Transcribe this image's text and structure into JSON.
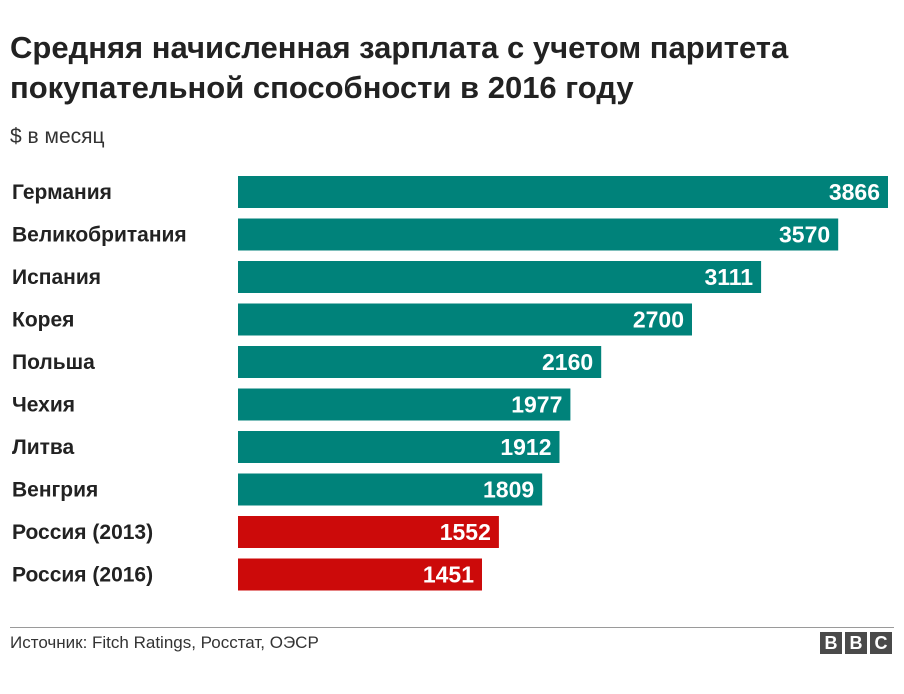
{
  "chart_data": {
    "type": "bar",
    "orientation": "horizontal",
    "title": "Средняя начисленная зарплата с учетом паритета покупательной способности в 2016 году",
    "subtitle": "$ в месяц",
    "categories": [
      "Германия",
      "Великобритания",
      "Испания",
      "Корея",
      "Польша",
      "Чехия",
      "Литва",
      "Венгрия",
      "Россия (2013)",
      "Россия (2016)"
    ],
    "values": [
      3866,
      3570,
      3111,
      2700,
      2160,
      1977,
      1912,
      1809,
      1552,
      1451
    ],
    "highlight_categories": [
      "Россия (2013)",
      "Россия (2016)"
    ],
    "xlim": [
      0,
      3866
    ],
    "grid": false,
    "legend": "none",
    "data_labels": "inside-end"
  },
  "colors": {
    "bar_default": "#00827a",
    "bar_highlight": "#cc0a0a",
    "value_text": "#ffffff",
    "title_text": "#222222"
  },
  "footer": {
    "source": "Источник: Fitch Ratings, Росстат, ОЭСР",
    "logo_letters": [
      "B",
      "B",
      "C"
    ]
  }
}
